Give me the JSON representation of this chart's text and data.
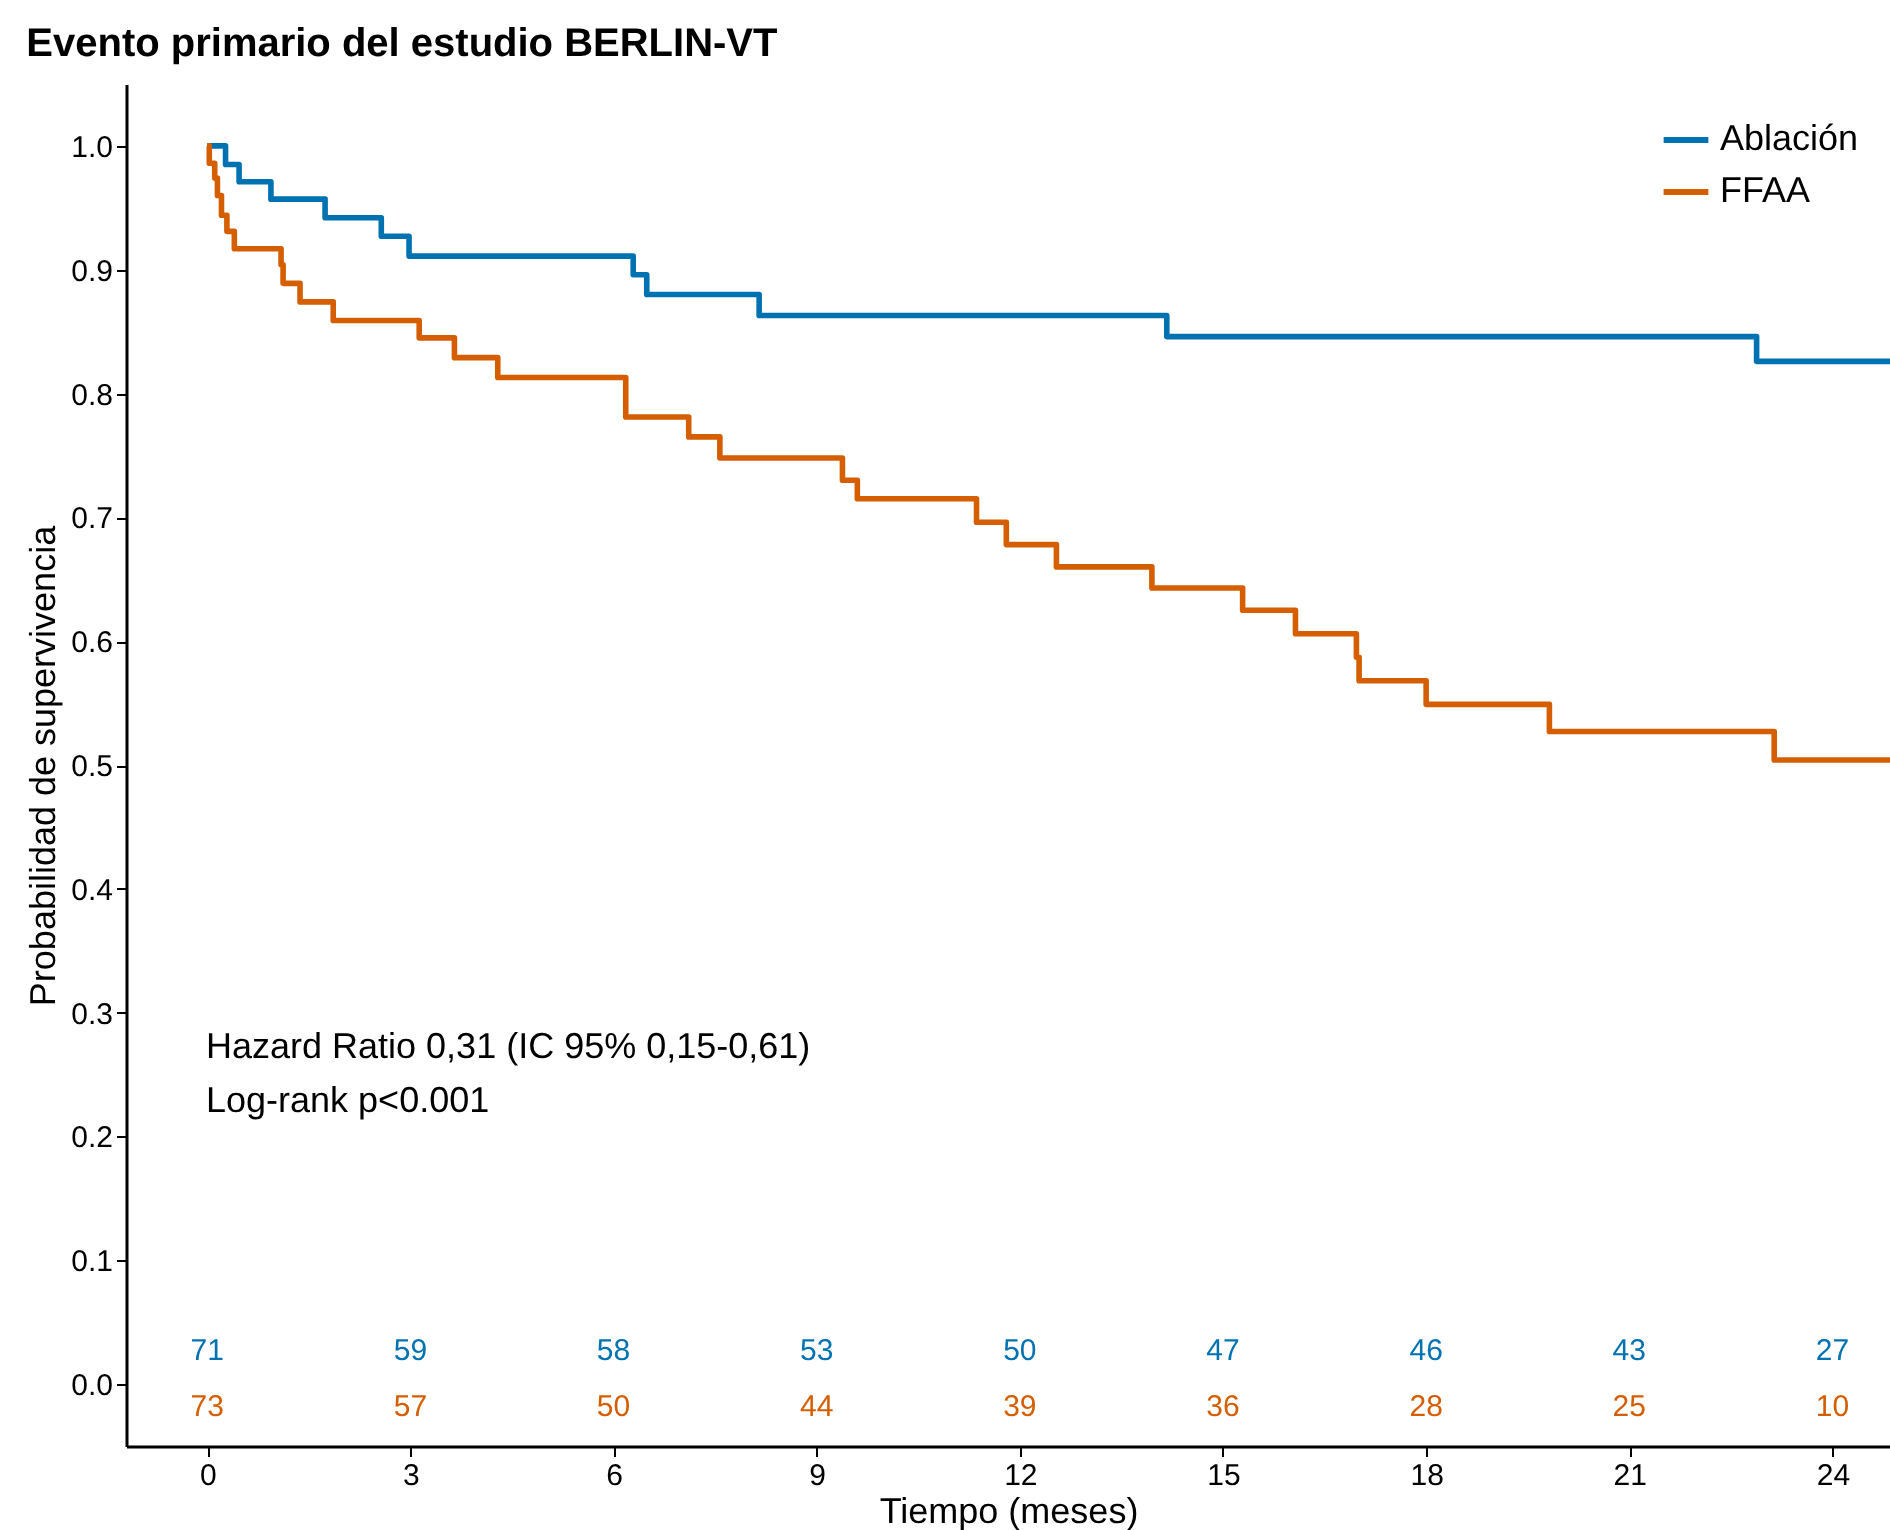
{
  "chart_data": {
    "type": "step",
    "title": "Evento primario del estudio BERLIN-VT",
    "xlabel": "Tiempo (meses)",
    "ylabel": "Probabilidad de supervivencia",
    "xlim": [
      -1.2,
      24.85
    ],
    "xticks": [
      0,
      3,
      6,
      9,
      12,
      15,
      18,
      21,
      24
    ],
    "ylim": [
      -0.05,
      1.05
    ],
    "yticks": [
      {
        "value": 0,
        "label": "0.0"
      },
      {
        "value": 0.1,
        "label": "0.1"
      },
      {
        "value": 0.2,
        "label": "0.2"
      },
      {
        "value": 0.3,
        "label": "0.3"
      },
      {
        "value": 0.4,
        "label": "0.4"
      },
      {
        "value": 0.5,
        "label": "0.5"
      },
      {
        "value": 0.6,
        "label": "0.6"
      },
      {
        "value": 0.7,
        "label": "0.7"
      },
      {
        "value": 0.8,
        "label": "0.8"
      },
      {
        "value": 0.9,
        "label": "0.9"
      },
      {
        "value": 1,
        "label": "1.0"
      }
    ],
    "grid": false,
    "legend": "top right",
    "line_style": "solid",
    "marker": "none",
    "series": [
      {
        "name": "Ablación",
        "color": "#0072b2",
        "x": [
          0,
          0.27,
          0.47,
          0.94,
          1.74,
          2.57,
          2.98,
          6.29,
          6.49,
          8.15,
          14.17,
          22.88,
          24.85
        ],
        "values": [
          1.0,
          0.985,
          0.971,
          0.957,
          0.942,
          0.927,
          0.911,
          0.896,
          0.88,
          0.863,
          0.846,
          0.826,
          0.826
        ]
      },
      {
        "name": "FFAA",
        "color": "#d55e00",
        "x": [
          0,
          0.03,
          0.11,
          0.15,
          0.21,
          0.29,
          0.4,
          1.09,
          1.12,
          1.37,
          1.86,
          3.13,
          3.65,
          4.29,
          6.18,
          7.11,
          7.57,
          9.38,
          9.6,
          11.36,
          11.8,
          12.54,
          13.95,
          15.29,
          16.07,
          16.97,
          17.01,
          18.0,
          19.82,
          23.14,
          24.85
        ],
        "values": [
          1.0,
          0.986,
          0.974,
          0.96,
          0.944,
          0.931,
          0.917,
          0.904,
          0.889,
          0.874,
          0.859,
          0.845,
          0.829,
          0.813,
          0.781,
          0.765,
          0.748,
          0.73,
          0.715,
          0.696,
          0.678,
          0.66,
          0.643,
          0.625,
          0.606,
          0.587,
          0.568,
          0.549,
          0.527,
          0.504,
          0.504
        ]
      }
    ],
    "annotations": [
      "Hazard Ratio 0,31 (IC 95% 0,15-0,61)",
      "Log-rank p<0.001",
      "71",
      "59",
      "58",
      "53",
      "50",
      "47",
      "46",
      "43",
      "27",
      "73",
      "57",
      "50",
      "44",
      "39",
      "36",
      "28",
      "25",
      "10"
    ]
  }
}
